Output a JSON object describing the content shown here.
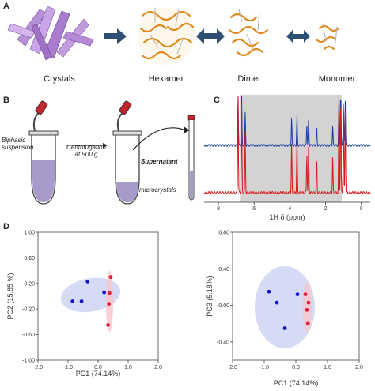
{
  "panels": {
    "a": "A",
    "b": "B",
    "c": "C",
    "d": "D"
  },
  "panel_a": {
    "labels": [
      "Crystals",
      "Hexamer",
      "Dimer",
      "Monomer"
    ]
  },
  "panel_b": {
    "biphasic": "Biphasic suspension",
    "centrifugation": "Centrifugation at 500 g",
    "supernatant": "Supernatant",
    "microcrystals": "microcrystals"
  },
  "chart_data": [
    {
      "type": "line",
      "panel": "C",
      "xlabel": "1H δ (ppm)",
      "x_ticks": [
        8,
        6,
        4,
        2,
        0
      ],
      "xlim": [
        8.8,
        -0.5
      ],
      "shaded_region_ppm": [
        6.8,
        1.1
      ],
      "series": [
        {
          "color": "#1a3aa8",
          "baseline": "upper"
        },
        {
          "color": "#d7191c",
          "baseline": "lower"
        }
      ]
    },
    {
      "type": "scatter",
      "panel": "D-left",
      "xlabel": "PC1 (74.14%)",
      "ylabel": "PC2 (15.85 %)",
      "xlim": [
        -2.0,
        2.0
      ],
      "ylim": [
        -1.0,
        1.0
      ],
      "x_ticks": [
        "-2.0",
        "-1.0",
        "0.0",
        "1.0",
        "2.0"
      ],
      "y_ticks": [
        "1.00",
        "0.60",
        "0.20",
        "-0.20",
        "-0.60",
        "-1.00"
      ],
      "series": [
        {
          "color": "#1414c8",
          "points": [
            [
              -0.85,
              -0.08
            ],
            [
              -0.55,
              -0.08
            ],
            [
              -0.35,
              0.23
            ],
            [
              0.2,
              0.06
            ]
          ]
        },
        {
          "color": "#e0203c",
          "points": [
            [
              0.42,
              0.3
            ],
            [
              0.38,
              0.05
            ],
            [
              0.36,
              -0.12
            ],
            [
              0.33,
              -0.45
            ]
          ]
        }
      ]
    },
    {
      "type": "scatter",
      "panel": "D-right",
      "xlabel": "PC1 (74.14%)",
      "ylabel": "PC3 (5.18%)",
      "xlim": [
        -2.0,
        2.0
      ],
      "ylim": [
        -0.6,
        0.8
      ],
      "x_ticks": [
        "-2.0",
        "-1.0",
        "0.0",
        "1.0",
        "2.0"
      ],
      "y_ticks": [
        "0.80",
        "0.40",
        "-0.00",
        "-0.40"
      ],
      "series": [
        {
          "color": "#1414c8",
          "points": [
            [
              -0.85,
              0.15
            ],
            [
              -0.6,
              0.03
            ],
            [
              -0.35,
              -0.25
            ],
            [
              0.05,
              0.12
            ]
          ]
        },
        {
          "color": "#e0203c",
          "points": [
            [
              0.3,
              0.12
            ],
            [
              0.35,
              -0.05
            ],
            [
              0.4,
              0.03
            ],
            [
              0.38,
              -0.2
            ]
          ]
        }
      ]
    }
  ]
}
